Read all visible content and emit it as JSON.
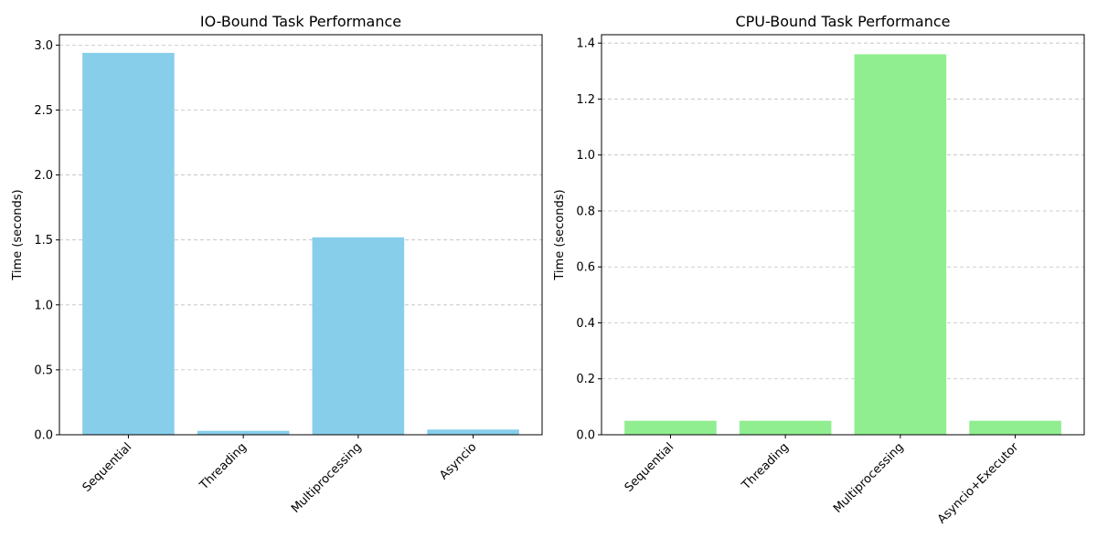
{
  "chart_data": [
    {
      "type": "bar",
      "title": "IO-Bound Task Performance",
      "xlabel": "",
      "ylabel": "Time (seconds)",
      "categories": [
        "Sequential",
        "Threading",
        "Multiprocessing",
        "Asyncio"
      ],
      "values": [
        2.94,
        0.03,
        1.52,
        0.04
      ],
      "ylim": [
        0,
        3.08
      ],
      "yticks": [
        "0.0",
        "0.5",
        "1.0",
        "1.5",
        "2.0",
        "2.5",
        "3.0"
      ],
      "ytick_values": [
        0,
        0.5,
        1.0,
        1.5,
        2.0,
        2.5,
        3.0
      ],
      "bar_color": "#87CEEB",
      "grid": "y-dashed",
      "legend": "none"
    },
    {
      "type": "bar",
      "title": "CPU-Bound Task Performance",
      "xlabel": "",
      "ylabel": "Time (seconds)",
      "categories": [
        "Sequential",
        "Threading",
        "Multiprocessing",
        "Asyncio+Executor"
      ],
      "values": [
        0.05,
        0.05,
        1.36,
        0.05
      ],
      "ylim": [
        0,
        1.43
      ],
      "yticks": [
        "0.0",
        "0.2",
        "0.4",
        "0.6",
        "0.8",
        "1.0",
        "1.2",
        "1.4"
      ],
      "ytick_values": [
        0,
        0.2,
        0.4,
        0.6,
        0.8,
        1.0,
        1.2,
        1.4
      ],
      "bar_color": "#90EE90",
      "grid": "y-dashed",
      "legend": "none"
    }
  ]
}
